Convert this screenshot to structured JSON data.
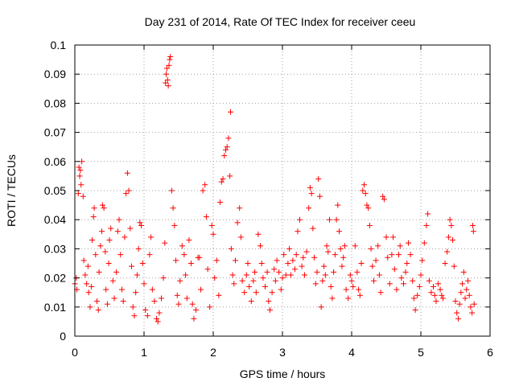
{
  "chart_data": {
    "type": "scatter",
    "title": "Day 231 of 2014, Rate Of TEC Index for receiver ceeu",
    "xlabel": "GPS time / hours",
    "ylabel": "ROTI / TECUs",
    "xlim": [
      0,
      6
    ],
    "ylim": [
      0,
      0.1
    ],
    "xticks": [
      "0",
      "1",
      "2",
      "3",
      "4",
      "5",
      "6"
    ],
    "yticks": [
      "0",
      "0.01",
      "0.02",
      "0.03",
      "0.04",
      "0.05",
      "0.06",
      "0.07",
      "0.08",
      "0.09",
      "0.1"
    ],
    "grid": true,
    "marker": "+",
    "marker_color": "#ff0000",
    "series": [
      {
        "name": "ROTI",
        "points": [
          [
            0.0,
            0.018
          ],
          [
            0.02,
            0.02
          ],
          [
            0.03,
            0.016
          ],
          [
            0.05,
            0.049
          ],
          [
            0.06,
            0.058
          ],
          [
            0.07,
            0.055
          ],
          [
            0.08,
            0.057
          ],
          [
            0.09,
            0.052
          ],
          [
            0.1,
            0.06
          ],
          [
            0.12,
            0.048
          ],
          [
            0.13,
            0.026
          ],
          [
            0.15,
            0.021
          ],
          [
            0.17,
            0.018
          ],
          [
            0.19,
            0.024
          ],
          [
            0.2,
            0.015
          ],
          [
            0.22,
            0.01
          ],
          [
            0.24,
            0.017
          ],
          [
            0.25,
            0.033
          ],
          [
            0.27,
            0.041
          ],
          [
            0.28,
            0.044
          ],
          [
            0.3,
            0.028
          ],
          [
            0.32,
            0.012
          ],
          [
            0.34,
            0.009
          ],
          [
            0.35,
            0.022
          ],
          [
            0.37,
            0.031
          ],
          [
            0.39,
            0.036
          ],
          [
            0.4,
            0.045
          ],
          [
            0.42,
            0.044
          ],
          [
            0.44,
            0.029
          ],
          [
            0.45,
            0.016
          ],
          [
            0.47,
            0.011
          ],
          [
            0.49,
            0.025
          ],
          [
            0.5,
            0.033
          ],
          [
            0.52,
            0.037
          ],
          [
            0.55,
            0.019
          ],
          [
            0.57,
            0.013
          ],
          [
            0.6,
            0.022
          ],
          [
            0.62,
            0.036
          ],
          [
            0.64,
            0.04
          ],
          [
            0.66,
            0.028
          ],
          [
            0.68,
            0.016
          ],
          [
            0.7,
            0.012
          ],
          [
            0.72,
            0.034
          ],
          [
            0.74,
            0.049
          ],
          [
            0.76,
            0.056
          ],
          [
            0.78,
            0.05
          ],
          [
            0.8,
            0.037
          ],
          [
            0.82,
            0.024
          ],
          [
            0.84,
            0.01
          ],
          [
            0.86,
            0.007
          ],
          [
            0.88,
            0.015
          ],
          [
            0.9,
            0.021
          ],
          [
            0.92,
            0.03
          ],
          [
            0.94,
            0.039
          ],
          [
            0.96,
            0.038
          ],
          [
            0.98,
            0.025
          ],
          [
            1.0,
            0.018
          ],
          [
            1.02,
            0.009
          ],
          [
            1.05,
            0.007
          ],
          [
            1.08,
            0.028
          ],
          [
            1.1,
            0.034
          ],
          [
            1.12,
            0.016
          ],
          [
            1.15,
            0.012
          ],
          [
            1.18,
            0.006
          ],
          [
            1.2,
            0.005
          ],
          [
            1.22,
            0.008
          ],
          [
            1.25,
            0.013
          ],
          [
            1.28,
            0.02
          ],
          [
            1.3,
            0.032
          ],
          [
            1.31,
            0.087
          ],
          [
            1.32,
            0.09
          ],
          [
            1.33,
            0.092
          ],
          [
            1.34,
            0.088
          ],
          [
            1.35,
            0.086
          ],
          [
            1.36,
            0.093
          ],
          [
            1.37,
            0.095
          ],
          [
            1.38,
            0.096
          ],
          [
            1.4,
            0.05
          ],
          [
            1.42,
            0.044
          ],
          [
            1.44,
            0.038
          ],
          [
            1.46,
            0.026
          ],
          [
            1.48,
            0.014
          ],
          [
            1.5,
            0.011
          ],
          [
            1.52,
            0.019
          ],
          [
            1.55,
            0.031
          ],
          [
            1.58,
            0.028
          ],
          [
            1.6,
            0.021
          ],
          [
            1.62,
            0.013
          ],
          [
            1.65,
            0.033
          ],
          [
            1.68,
            0.025
          ],
          [
            1.7,
            0.011
          ],
          [
            1.72,
            0.006
          ],
          [
            1.75,
            0.009
          ],
          [
            1.78,
            0.027
          ],
          [
            1.8,
            0.027
          ],
          [
            1.82,
            0.016
          ],
          [
            1.85,
            0.05
          ],
          [
            1.88,
            0.052
          ],
          [
            1.9,
            0.041
          ],
          [
            1.92,
            0.023
          ],
          [
            1.95,
            0.01
          ],
          [
            1.98,
            0.038
          ],
          [
            2.0,
            0.035
          ],
          [
            2.02,
            0.02
          ],
          [
            2.05,
            0.026
          ],
          [
            2.08,
            0.014
          ],
          [
            2.1,
            0.046
          ],
          [
            2.12,
            0.053
          ],
          [
            2.14,
            0.054
          ],
          [
            2.16,
            0.062
          ],
          [
            2.18,
            0.064
          ],
          [
            2.2,
            0.065
          ],
          [
            2.22,
            0.068
          ],
          [
            2.24,
            0.055
          ],
          [
            2.25,
            0.077
          ],
          [
            2.26,
            0.03
          ],
          [
            2.28,
            0.021
          ],
          [
            2.3,
            0.018
          ],
          [
            2.32,
            0.026
          ],
          [
            2.35,
            0.039
          ],
          [
            2.38,
            0.044
          ],
          [
            2.4,
            0.034
          ],
          [
            2.42,
            0.019
          ],
          [
            2.45,
            0.015
          ],
          [
            2.48,
            0.021
          ],
          [
            2.5,
            0.025
          ],
          [
            2.52,
            0.017
          ],
          [
            2.55,
            0.012
          ],
          [
            2.58,
            0.019
          ],
          [
            2.6,
            0.022
          ],
          [
            2.62,
            0.015
          ],
          [
            2.65,
            0.035
          ],
          [
            2.68,
            0.031
          ],
          [
            2.7,
            0.025
          ],
          [
            2.72,
            0.02
          ],
          [
            2.75,
            0.017
          ],
          [
            2.78,
            0.022
          ],
          [
            2.8,
            0.012
          ],
          [
            2.82,
            0.009
          ],
          [
            2.85,
            0.015
          ],
          [
            2.88,
            0.023
          ],
          [
            2.9,
            0.019
          ],
          [
            2.92,
            0.026
          ],
          [
            2.95,
            0.022
          ],
          [
            2.98,
            0.016
          ],
          [
            3.0,
            0.02
          ],
          [
            3.02,
            0.028
          ],
          [
            3.05,
            0.021
          ],
          [
            3.08,
            0.025
          ],
          [
            3.1,
            0.03
          ],
          [
            3.12,
            0.021
          ],
          [
            3.15,
            0.026
          ],
          [
            3.18,
            0.023
          ],
          [
            3.2,
            0.028
          ],
          [
            3.22,
            0.036
          ],
          [
            3.25,
            0.04
          ],
          [
            3.28,
            0.024
          ],
          [
            3.3,
            0.027
          ],
          [
            3.32,
            0.021
          ],
          [
            3.35,
            0.029
          ],
          [
            3.38,
            0.044
          ],
          [
            3.4,
            0.051
          ],
          [
            3.42,
            0.049
          ],
          [
            3.44,
            0.037
          ],
          [
            3.46,
            0.027
          ],
          [
            3.48,
            0.018
          ],
          [
            3.5,
            0.022
          ],
          [
            3.52,
            0.054
          ],
          [
            3.54,
            0.048
          ],
          [
            3.56,
            0.01
          ],
          [
            3.58,
            0.019
          ],
          [
            3.6,
            0.024
          ],
          [
            3.62,
            0.021
          ],
          [
            3.64,
            0.031
          ],
          [
            3.66,
            0.029
          ],
          [
            3.68,
            0.04
          ],
          [
            3.7,
            0.017
          ],
          [
            3.72,
            0.013
          ],
          [
            3.74,
            0.022
          ],
          [
            3.76,
            0.028
          ],
          [
            3.78,
            0.04
          ],
          [
            3.8,
            0.045
          ],
          [
            3.82,
            0.036
          ],
          [
            3.84,
            0.03
          ],
          [
            3.86,
            0.024
          ],
          [
            3.88,
            0.027
          ],
          [
            3.9,
            0.031
          ],
          [
            3.92,
            0.016
          ],
          [
            3.95,
            0.013
          ],
          [
            3.98,
            0.021
          ],
          [
            4.0,
            0.019
          ],
          [
            4.02,
            0.017
          ],
          [
            4.05,
            0.031
          ],
          [
            4.08,
            0.022
          ],
          [
            4.1,
            0.016
          ],
          [
            4.12,
            0.014
          ],
          [
            4.14,
            0.025
          ],
          [
            4.16,
            0.05
          ],
          [
            4.18,
            0.052
          ],
          [
            4.2,
            0.049
          ],
          [
            4.22,
            0.045
          ],
          [
            4.24,
            0.044
          ],
          [
            4.26,
            0.038
          ],
          [
            4.28,
            0.03
          ],
          [
            4.3,
            0.024
          ],
          [
            4.32,
            0.019
          ],
          [
            4.35,
            0.026
          ],
          [
            4.38,
            0.031
          ],
          [
            4.4,
            0.021
          ],
          [
            4.42,
            0.015
          ],
          [
            4.45,
            0.048
          ],
          [
            4.47,
            0.047
          ],
          [
            4.5,
            0.034
          ],
          [
            4.52,
            0.027
          ],
          [
            4.55,
            0.018
          ],
          [
            4.58,
            0.028
          ],
          [
            4.6,
            0.034
          ],
          [
            4.62,
            0.023
          ],
          [
            4.65,
            0.016
          ],
          [
            4.68,
            0.028
          ],
          [
            4.7,
            0.031
          ],
          [
            4.72,
            0.02
          ],
          [
            4.75,
            0.018
          ],
          [
            4.78,
            0.022
          ],
          [
            4.8,
            0.025
          ],
          [
            4.82,
            0.032
          ],
          [
            4.85,
            0.028
          ],
          [
            4.88,
            0.019
          ],
          [
            4.9,
            0.013
          ],
          [
            4.92,
            0.009
          ],
          [
            4.95,
            0.014
          ],
          [
            4.98,
            0.017
          ],
          [
            5.0,
            0.021
          ],
          [
            5.02,
            0.026
          ],
          [
            5.05,
            0.032
          ],
          [
            5.08,
            0.038
          ],
          [
            5.1,
            0.042
          ],
          [
            5.12,
            0.019
          ],
          [
            5.15,
            0.015
          ],
          [
            5.18,
            0.017
          ],
          [
            5.2,
            0.014
          ],
          [
            5.22,
            0.012
          ],
          [
            5.25,
            0.018
          ],
          [
            5.28,
            0.016
          ],
          [
            5.3,
            0.014
          ],
          [
            5.32,
            0.013
          ],
          [
            5.35,
            0.025
          ],
          [
            5.38,
            0.029
          ],
          [
            5.4,
            0.034
          ],
          [
            5.42,
            0.04
          ],
          [
            5.44,
            0.038
          ],
          [
            5.46,
            0.033
          ],
          [
            5.48,
            0.024
          ],
          [
            5.5,
            0.012
          ],
          [
            5.52,
            0.008
          ],
          [
            5.54,
            0.006
          ],
          [
            5.56,
            0.011
          ],
          [
            5.58,
            0.015
          ],
          [
            5.6,
            0.018
          ],
          [
            5.62,
            0.022
          ],
          [
            5.64,
            0.013
          ],
          [
            5.66,
            0.016
          ],
          [
            5.68,
            0.019
          ],
          [
            5.7,
            0.014
          ],
          [
            5.72,
            0.01
          ],
          [
            5.74,
            0.008
          ],
          [
            5.75,
            0.038
          ],
          [
            5.76,
            0.036
          ],
          [
            5.77,
            0.011
          ]
        ]
      }
    ]
  }
}
